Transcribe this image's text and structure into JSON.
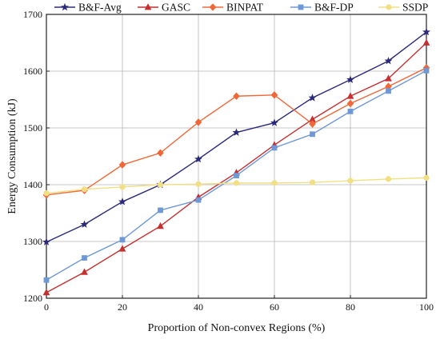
{
  "chart_data": {
    "type": "line",
    "xlabel": "Proportion of Non-convex Regions (%)",
    "ylabel": "Energy Consumption (kJ)",
    "xlim": [
      0,
      100
    ],
    "ylim": [
      1200,
      1700
    ],
    "xticks": [
      0,
      20,
      40,
      60,
      80,
      100
    ],
    "yticks": [
      1200,
      1300,
      1400,
      1500,
      1600,
      1700
    ],
    "grid": true,
    "legend": "top",
    "x": [
      0,
      10,
      20,
      30,
      40,
      50,
      60,
      70,
      80,
      90,
      100
    ],
    "series": [
      {
        "name": "B&F-Avg",
        "color": "#2b2a7a",
        "marker": "star",
        "values": [
          1299,
          1330,
          1370,
          1400,
          1445,
          1492,
          1509,
          1553,
          1585,
          1618,
          1669
        ]
      },
      {
        "name": "GASC",
        "color": "#c62f2f",
        "marker": "triangle",
        "values": [
          1210,
          1246,
          1287,
          1327,
          1378,
          1421,
          1470,
          1515,
          1556,
          1587,
          1650
        ]
      },
      {
        "name": "BINPAT",
        "color": "#f0683a",
        "marker": "diamond",
        "values": [
          1382,
          1390,
          1435,
          1456,
          1510,
          1556,
          1558,
          1507,
          1543,
          1573,
          1606
        ]
      },
      {
        "name": "B&F-DP",
        "color": "#6f98d6",
        "marker": "square",
        "values": [
          1232,
          1271,
          1303,
          1355,
          1373,
          1416,
          1465,
          1489,
          1529,
          1565,
          1601
        ]
      },
      {
        "name": "SSDP",
        "color": "#f2df84",
        "marker": "circle",
        "values": [
          1385,
          1392,
          1396,
          1400,
          1401,
          1403,
          1403,
          1404,
          1407,
          1410,
          1412
        ]
      }
    ]
  }
}
